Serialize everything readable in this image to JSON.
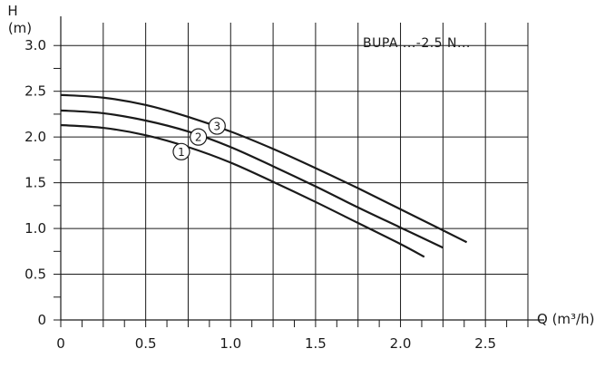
{
  "chart_data": {
    "type": "line",
    "model_label": "BUPA ...-2.5 N...",
    "ylabel": "H",
    "yunit": "(m)",
    "xlabel": "Q (m³/h)",
    "xlim": [
      0,
      2.75
    ],
    "ylim": [
      0,
      3.25
    ],
    "x_ticks": [
      {
        "value": 0,
        "label": "0"
      },
      {
        "value": 0.5,
        "label": "0.5"
      },
      {
        "value": 1.0,
        "label": "1.0"
      },
      {
        "value": 1.5,
        "label": "1.5"
      },
      {
        "value": 2.0,
        "label": "2.0"
      },
      {
        "value": 2.5,
        "label": "2.5"
      }
    ],
    "y_ticks": [
      {
        "value": 0,
        "label": "0"
      },
      {
        "value": 0.5,
        "label": "0.5"
      },
      {
        "value": 1.0,
        "label": "1.0"
      },
      {
        "value": 1.5,
        "label": "1.5"
      },
      {
        "value": 2.0,
        "label": "2.0"
      },
      {
        "value": 2.5,
        "label": "2.5"
      },
      {
        "value": 3.0,
        "label": "3.0"
      }
    ],
    "grid": true,
    "series": [
      {
        "name": "1",
        "x": [
          0,
          0.25,
          0.5,
          0.75,
          1.0,
          1.25,
          1.5,
          1.75,
          2.0,
          2.14
        ],
        "y": [
          2.13,
          2.1,
          2.02,
          1.89,
          1.72,
          1.51,
          1.29,
          1.06,
          0.83,
          0.69
        ]
      },
      {
        "name": "2",
        "x": [
          0,
          0.25,
          0.5,
          0.75,
          1.0,
          1.25,
          1.5,
          1.75,
          2.0,
          2.25
        ],
        "y": [
          2.29,
          2.26,
          2.18,
          2.06,
          1.89,
          1.68,
          1.46,
          1.23,
          1.01,
          0.79
        ]
      },
      {
        "name": "3",
        "x": [
          0,
          0.25,
          0.5,
          0.75,
          1.0,
          1.25,
          1.5,
          1.75,
          2.0,
          2.25,
          2.39
        ],
        "y": [
          2.46,
          2.43,
          2.35,
          2.22,
          2.06,
          1.87,
          1.66,
          1.44,
          1.21,
          0.98,
          0.85
        ]
      }
    ],
    "curve_labels": [
      {
        "text": "1",
        "x": 0.71,
        "y": 1.84
      },
      {
        "text": "2",
        "x": 0.81,
        "y": 2.0
      },
      {
        "text": "3",
        "x": 0.92,
        "y": 2.12
      }
    ]
  }
}
